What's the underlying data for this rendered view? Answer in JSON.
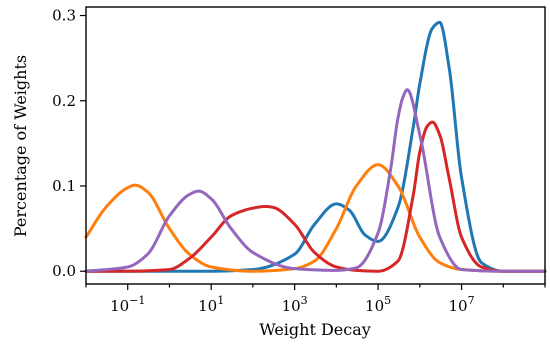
{
  "chart_data": {
    "type": "line",
    "title": "",
    "xlabel": "Weight Decay",
    "ylabel": "Percentage of Weights",
    "x_scale": "log",
    "xlim": [
      0.01,
      1000000000
    ],
    "ylim": [
      -0.015,
      0.31
    ],
    "x_tick_values": [
      0.1,
      10,
      1000,
      100000,
      10000000
    ],
    "x_ticks": [
      {
        "base": "10",
        "exp": "−1"
      },
      {
        "base": "10",
        "exp": "1"
      },
      {
        "base": "10",
        "exp": "3"
      },
      {
        "base": "10",
        "exp": "5"
      },
      {
        "base": "10",
        "exp": "7"
      }
    ],
    "y_tick_values": [
      0.0,
      0.1,
      0.2,
      0.3
    ],
    "y_ticks": [
      "0.0",
      "0.1",
      "0.2",
      "0.3"
    ],
    "grid": false,
    "legend": "none",
    "series": [
      {
        "color": "#1f77b4",
        "x": [
          0.01,
          0.1,
          1,
          10,
          100,
          1000,
          3000,
          10000,
          20000,
          50000,
          100000,
          300000,
          700000,
          1000000,
          2000000,
          3000000,
          5000000,
          10000000,
          30000000,
          100000000,
          1000000000
        ],
        "y": [
          0.0,
          0.0,
          0.0,
          0.0,
          0.002,
          0.02,
          0.055,
          0.079,
          0.072,
          0.042,
          0.035,
          0.075,
          0.17,
          0.22,
          0.285,
          0.292,
          0.24,
          0.11,
          0.01,
          0.0,
          0.0
        ]
      },
      {
        "color": "#ff7f0e",
        "x": [
          0.01,
          0.03,
          0.1,
          0.15,
          0.3,
          1,
          3,
          10,
          100,
          1000,
          3000,
          10000,
          30000,
          100000,
          300000,
          1000000,
          3000000,
          10000000,
          100000000,
          1000000000
        ],
        "y": [
          0.04,
          0.075,
          0.098,
          0.101,
          0.093,
          0.05,
          0.02,
          0.005,
          0.0,
          0.003,
          0.012,
          0.05,
          0.1,
          0.125,
          0.1,
          0.04,
          0.01,
          0.002,
          0.0,
          0.0
        ]
      },
      {
        "color": "#d62728",
        "x": [
          0.01,
          0.1,
          1,
          3,
          10,
          30,
          100,
          200,
          300,
          1000,
          3000,
          10000,
          30000,
          100000,
          300000,
          700000,
          1000000,
          1500000,
          2000000,
          3000000,
          5000000,
          10000000,
          30000000,
          100000000,
          1000000000
        ],
        "y": [
          0.0,
          0.0,
          0.002,
          0.015,
          0.04,
          0.065,
          0.074,
          0.076,
          0.075,
          0.055,
          0.022,
          0.005,
          0.001,
          0.0,
          0.012,
          0.09,
          0.14,
          0.17,
          0.175,
          0.16,
          0.11,
          0.04,
          0.005,
          0.0,
          0.0
        ]
      },
      {
        "color": "#9467bd",
        "x": [
          0.01,
          0.1,
          0.3,
          1,
          3,
          5,
          10,
          30,
          100,
          1000,
          10000,
          30000,
          100000,
          200000,
          300000,
          400000,
          500000,
          1000000,
          3000000,
          10000000,
          100000000,
          1000000000
        ],
        "y": [
          0.0,
          0.005,
          0.02,
          0.065,
          0.09,
          0.094,
          0.085,
          0.05,
          0.022,
          0.003,
          0.001,
          0.004,
          0.045,
          0.12,
          0.18,
          0.205,
          0.213,
          0.16,
          0.04,
          0.002,
          0.0,
          0.0
        ]
      }
    ]
  }
}
